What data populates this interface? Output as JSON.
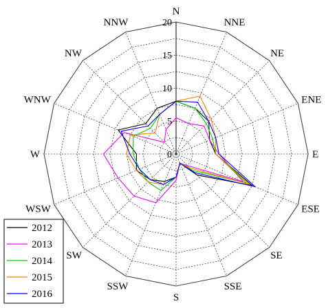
{
  "chart_data": {
    "type": "radar",
    "directions": [
      "N",
      "NNE",
      "NE",
      "ENE",
      "E",
      "ESE",
      "SE",
      "SSE",
      "S",
      "SSW",
      "SW",
      "WSW",
      "W",
      "WNW",
      "NW",
      "NNW"
    ],
    "radial_ticks": [
      "0",
      "5",
      "10",
      "15",
      "20"
    ],
    "rlim": [
      0,
      20
    ],
    "grid": true,
    "legend_position": "bottom-left",
    "series": [
      {
        "name": "2012",
        "color": "#000000",
        "values": [
          8.0,
          7.5,
          7.0,
          5.5,
          6.0,
          12.5,
          4.5,
          1.5,
          3.5,
          4.5,
          5.5,
          6.5,
          6.0,
          9.5,
          6.5,
          7.5
        ]
      },
      {
        "name": "2013",
        "color": "#ff00ff",
        "values": [
          5.5,
          5.0,
          6.0,
          5.5,
          6.5,
          11.0,
          2.5,
          1.5,
          4.0,
          8.0,
          9.0,
          9.5,
          11.0,
          8.5,
          2.5,
          4.0
        ]
      },
      {
        "name": "2014",
        "color": "#00cc00",
        "values": [
          8.0,
          7.5,
          6.5,
          6.0,
          6.0,
          11.5,
          3.5,
          1.5,
          3.5,
          6.0,
          6.0,
          6.0,
          6.5,
          7.0,
          5.5,
          6.5
        ]
      },
      {
        "name": "2015",
        "color": "#ff8000",
        "values": [
          8.0,
          9.5,
          7.5,
          6.5,
          6.0,
          12.0,
          3.0,
          1.5,
          3.5,
          5.0,
          6.0,
          6.5,
          7.5,
          7.5,
          4.5,
          6.5
        ]
      },
      {
        "name": "2016",
        "color": "#0000ff",
        "values": [
          8.0,
          8.5,
          7.0,
          6.5,
          6.5,
          13.0,
          4.0,
          1.5,
          3.5,
          5.0,
          5.5,
          6.0,
          7.0,
          9.0,
          6.0,
          6.5
        ]
      }
    ]
  }
}
